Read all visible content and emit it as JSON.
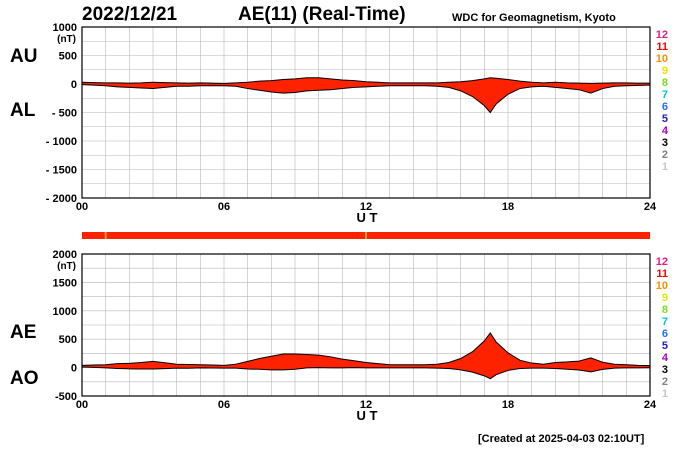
{
  "header": {
    "date": "2022/12/21",
    "title": "AE(11) (Real-Time)",
    "source": "WDC for Geomagnetism, Kyoto"
  },
  "footer": {
    "created": "[Created at 2025-04-03 02:10UT]"
  },
  "station_count_legend": [
    {
      "label": "12",
      "color": "#e0208a"
    },
    {
      "label": "11",
      "color": "#ff0000"
    },
    {
      "label": "10",
      "color": "#ff8c00"
    },
    {
      "label": "9",
      "color": "#e6e600"
    },
    {
      "label": "8",
      "color": "#7ddc1f"
    },
    {
      "label": "7",
      "color": "#00c8c8"
    },
    {
      "label": "6",
      "color": "#1e6fff"
    },
    {
      "label": "5",
      "color": "#2020c0"
    },
    {
      "label": "4",
      "color": "#b000d0"
    },
    {
      "label": "3",
      "color": "#000000"
    },
    {
      "label": "2",
      "color": "#808080"
    },
    {
      "label": "1",
      "color": "#c8c8c8"
    }
  ],
  "chart_data": [
    {
      "type": "area",
      "panel": "upper",
      "series_labels": [
        "AU",
        "AL"
      ],
      "xlabel": "U T",
      "ylabel_unit": "(nT)",
      "xlim": [
        0,
        24
      ],
      "ylim": [
        -2000,
        1000
      ],
      "xticks": [
        "00",
        "06",
        "12",
        "18",
        "24"
      ],
      "yticks": [
        "1000",
        "500",
        "0",
        "- 500",
        "- 1000",
        "- 1500",
        "- 2000"
      ],
      "ytick_values": [
        1000,
        500,
        0,
        -500,
        -1000,
        -1500,
        -2000
      ],
      "fill_color": "#ff2200",
      "x": [
        0,
        0.5,
        1,
        1.5,
        2,
        2.5,
        3,
        3.5,
        4,
        4.5,
        5,
        5.5,
        6,
        6.5,
        7,
        7.5,
        8,
        8.5,
        9,
        9.5,
        10,
        10.5,
        11,
        11.5,
        12,
        12.5,
        13,
        13.5,
        14,
        14.5,
        15,
        15.5,
        16,
        16.5,
        17,
        17.25,
        17.5,
        18,
        18.5,
        19,
        19.5,
        20,
        20.5,
        21,
        21.5,
        22,
        22.5,
        23,
        23.5,
        24
      ],
      "au": [
        30,
        25,
        20,
        20,
        15,
        20,
        30,
        25,
        20,
        15,
        20,
        15,
        10,
        20,
        30,
        50,
        60,
        80,
        90,
        110,
        110,
        90,
        70,
        60,
        40,
        30,
        20,
        20,
        20,
        20,
        20,
        30,
        40,
        60,
        90,
        110,
        100,
        80,
        50,
        30,
        20,
        30,
        20,
        15,
        10,
        15,
        20,
        20,
        15,
        15
      ],
      "al": [
        -10,
        -20,
        -30,
        -50,
        -60,
        -70,
        -80,
        -60,
        -40,
        -40,
        -30,
        -30,
        -30,
        -40,
        -80,
        -110,
        -140,
        -160,
        -150,
        -120,
        -110,
        -100,
        -80,
        -60,
        -50,
        -40,
        -30,
        -30,
        -30,
        -30,
        -40,
        -60,
        -120,
        -220,
        -380,
        -500,
        -350,
        -180,
        -80,
        -50,
        -40,
        -60,
        -80,
        -100,
        -160,
        -80,
        -40,
        -30,
        -25,
        -20
      ]
    },
    {
      "type": "area",
      "panel": "lower",
      "series_labels": [
        "AE",
        "AO"
      ],
      "xlabel": "U T",
      "ylabel_unit": "(nT)",
      "xlim": [
        0,
        24
      ],
      "ylim": [
        -500,
        2000
      ],
      "xticks": [
        "00",
        "06",
        "12",
        "18",
        "24"
      ],
      "yticks": [
        "2000",
        "1500",
        "1000",
        "500",
        "0",
        "-500"
      ],
      "ytick_values": [
        2000,
        1500,
        1000,
        500,
        0,
        -500
      ],
      "fill_color": "#ff2200",
      "x": [
        0,
        0.5,
        1,
        1.5,
        2,
        2.5,
        3,
        3.5,
        4,
        4.5,
        5,
        5.5,
        6,
        6.5,
        7,
        7.5,
        8,
        8.5,
        9,
        9.5,
        10,
        10.5,
        11,
        11.5,
        12,
        12.5,
        13,
        13.5,
        14,
        14.5,
        15,
        15.5,
        16,
        16.5,
        17,
        17.25,
        17.5,
        18,
        18.5,
        19,
        19.5,
        20,
        20.5,
        21,
        21.5,
        22,
        22.5,
        23,
        23.5,
        24
      ],
      "ae": [
        40,
        45,
        50,
        70,
        75,
        90,
        110,
        85,
        60,
        55,
        50,
        45,
        40,
        60,
        110,
        160,
        200,
        240,
        240,
        230,
        220,
        190,
        150,
        120,
        90,
        70,
        50,
        50,
        50,
        50,
        60,
        90,
        160,
        280,
        470,
        610,
        450,
        260,
        130,
        80,
        60,
        90,
        100,
        115,
        170,
        95,
        60,
        50,
        40,
        35
      ],
      "ao": [
        10,
        3,
        -5,
        -15,
        -22,
        -25,
        -25,
        -18,
        -10,
        -12,
        -5,
        -8,
        -10,
        -10,
        -25,
        -30,
        -40,
        -40,
        -30,
        -5,
        0,
        -5,
        -5,
        0,
        -5,
        -5,
        -5,
        -5,
        -5,
        -5,
        -10,
        -15,
        -40,
        -80,
        -145,
        -195,
        -125,
        -50,
        -15,
        -10,
        -10,
        -15,
        -30,
        -42,
        -75,
        -32,
        -10,
        -5,
        -5,
        -3
      ]
    }
  ],
  "station_bar": {
    "color": "#ff2200",
    "gap_times_ut": [
      1.0,
      12.0
    ],
    "gap_color": "#e0a040"
  }
}
